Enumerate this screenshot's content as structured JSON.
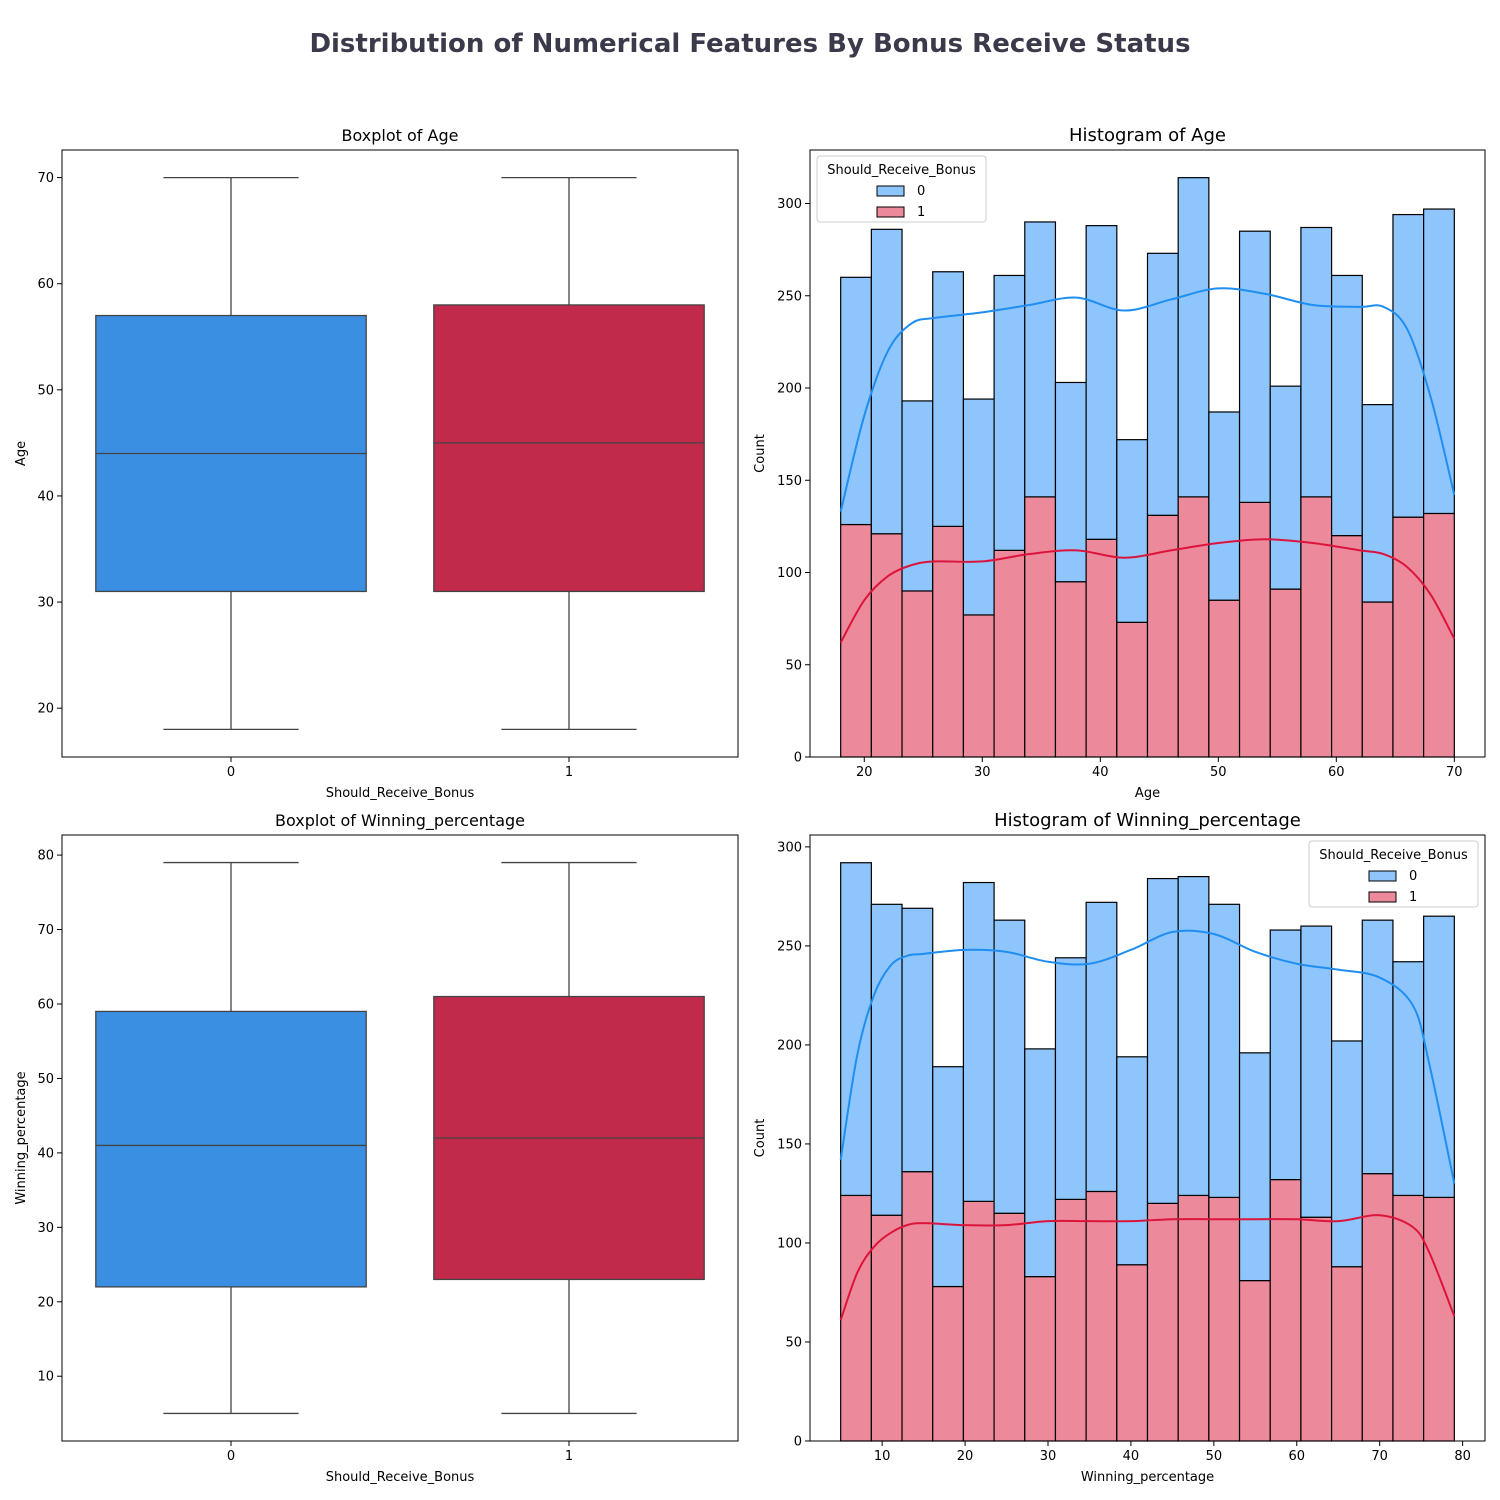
{
  "figure": {
    "title": "Distribution of Numerical Features By Bonus Receive Status"
  },
  "colors": {
    "class0_fill": "#3a8fe3",
    "class1_fill": "#c12a4a",
    "hist0_fill": "#8fc5fd",
    "hist1_fill": "#ec8a9c",
    "kde0": "#1f8ef0",
    "kde1": "#dc143c",
    "box_line": "#444444",
    "title": "#3a3a4a"
  },
  "chart_data": [
    {
      "type": "box",
      "title": "Boxplot of Age",
      "xlabel": "Should_Receive_Bonus",
      "ylabel": "Age",
      "categories": [
        "0",
        "1"
      ],
      "ylim": [
        15.4,
        72.6
      ],
      "yticks": [
        20,
        30,
        40,
        50,
        60,
        70
      ],
      "boxes": [
        {
          "category": "0",
          "min": 18,
          "q1": 31,
          "median": 44,
          "q3": 57,
          "max": 70
        },
        {
          "category": "1",
          "min": 18,
          "q1": 31,
          "median": 45,
          "q3": 58,
          "max": 70
        }
      ]
    },
    {
      "type": "histogram",
      "title": "Histogram of Age",
      "xlabel": "Age",
      "ylabel": "Count",
      "xlim": [
        15.4,
        72.6
      ],
      "ylim": [
        0,
        329
      ],
      "xticks": [
        20,
        30,
        40,
        50,
        60,
        70
      ],
      "yticks": [
        0,
        50,
        100,
        150,
        200,
        250,
        300
      ],
      "legend": {
        "title": "Should_Receive_Bonus",
        "entries": [
          "0",
          "1"
        ],
        "position": "upper-left"
      },
      "bin_edges": [
        18,
        20.6,
        23.2,
        25.8,
        28.4,
        31,
        33.6,
        36.2,
        38.8,
        41.4,
        44,
        46.6,
        49.2,
        51.8,
        54.4,
        57,
        59.6,
        62.2,
        64.8,
        67.4,
        70
      ],
      "series": [
        {
          "name": "1",
          "values": [
            126,
            121,
            90,
            125,
            77,
            112,
            141,
            95,
            118,
            73,
            131,
            141,
            85,
            138,
            91,
            141,
            120,
            84,
            130,
            132
          ]
        },
        {
          "name": "0",
          "values": [
            134,
            165,
            103,
            138,
            117,
            149,
            149,
            108,
            170,
            99,
            142,
            173,
            102,
            147,
            110,
            146,
            141,
            107,
            164,
            165
          ]
        }
      ],
      "kde": [
        {
          "name": "0",
          "x": [
            18,
            20,
            22,
            24,
            26,
            30,
            34,
            38,
            42,
            46,
            50,
            54,
            58,
            62,
            64,
            66,
            68,
            70
          ],
          "y": [
            133,
            185,
            220,
            235,
            238,
            241,
            245,
            249,
            242,
            248,
            254,
            251,
            245,
            244,
            244,
            232,
            195,
            142
          ]
        },
        {
          "name": "1",
          "x": [
            18,
            20,
            22,
            24,
            26,
            30,
            34,
            38,
            42,
            46,
            50,
            54,
            58,
            62,
            64,
            66,
            68,
            70
          ],
          "y": [
            62,
            85,
            98,
            104,
            106,
            106,
            110,
            112,
            108,
            112,
            116,
            118,
            116,
            112,
            110,
            103,
            88,
            64
          ]
        }
      ]
    },
    {
      "type": "box",
      "title": "Boxplot of Winning_percentage",
      "xlabel": "Should_Receive_Bonus",
      "ylabel": "Winning_percentage",
      "categories": [
        "0",
        "1"
      ],
      "ylim": [
        1.3,
        82.7
      ],
      "yticks": [
        10,
        20,
        30,
        40,
        50,
        60,
        70,
        80
      ],
      "boxes": [
        {
          "category": "0",
          "min": 5,
          "q1": 22,
          "median": 41,
          "q3": 59,
          "max": 79
        },
        {
          "category": "1",
          "min": 5,
          "q1": 23,
          "median": 42,
          "q3": 61,
          "max": 79
        }
      ]
    },
    {
      "type": "histogram",
      "title": "Histogram of Winning_percentage",
      "xlabel": "Winning_percentage",
      "ylabel": "Count",
      "xlim": [
        1.3,
        82.7
      ],
      "ylim": [
        0,
        306
      ],
      "xticks": [
        10,
        20,
        30,
        40,
        50,
        60,
        70,
        80
      ],
      "yticks": [
        0,
        50,
        100,
        150,
        200,
        250,
        300
      ],
      "legend": {
        "title": "Should_Receive_Bonus",
        "entries": [
          "0",
          "1"
        ],
        "position": "upper-right"
      },
      "bin_edges": [
        5,
        8.7,
        12.4,
        16.1,
        19.8,
        23.5,
        27.2,
        30.9,
        34.6,
        38.3,
        42,
        45.7,
        49.4,
        53.1,
        56.8,
        60.5,
        64.2,
        67.9,
        71.6,
        75.3,
        79
      ],
      "series": [
        {
          "name": "1",
          "values": [
            124,
            114,
            136,
            78,
            121,
            115,
            83,
            122,
            126,
            89,
            120,
            124,
            123,
            81,
            132,
            113,
            88,
            135,
            124,
            123
          ]
        },
        {
          "name": "0",
          "values": [
            168,
            157,
            133,
            111,
            161,
            148,
            115,
            122,
            146,
            105,
            164,
            161,
            148,
            115,
            126,
            147,
            114,
            128,
            118,
            142
          ]
        }
      ],
      "kde": [
        {
          "name": "0",
          "x": [
            5,
            7,
            9,
            11,
            13,
            15,
            20,
            25,
            30,
            35,
            40,
            45,
            50,
            55,
            60,
            65,
            70,
            74,
            76,
            79
          ],
          "y": [
            142,
            195,
            225,
            240,
            245,
            246,
            248,
            247,
            242,
            241,
            248,
            257,
            256,
            247,
            241,
            238,
            234,
            220,
            190,
            130
          ]
        },
        {
          "name": "1",
          "x": [
            5,
            7,
            9,
            11,
            13,
            15,
            20,
            25,
            30,
            35,
            40,
            45,
            50,
            55,
            60,
            65,
            70,
            74,
            76,
            79
          ],
          "y": [
            61,
            85,
            98,
            105,
            109,
            110,
            109,
            109,
            111,
            111,
            111,
            112,
            112,
            112,
            112,
            111,
            114,
            108,
            95,
            63
          ]
        }
      ]
    }
  ]
}
